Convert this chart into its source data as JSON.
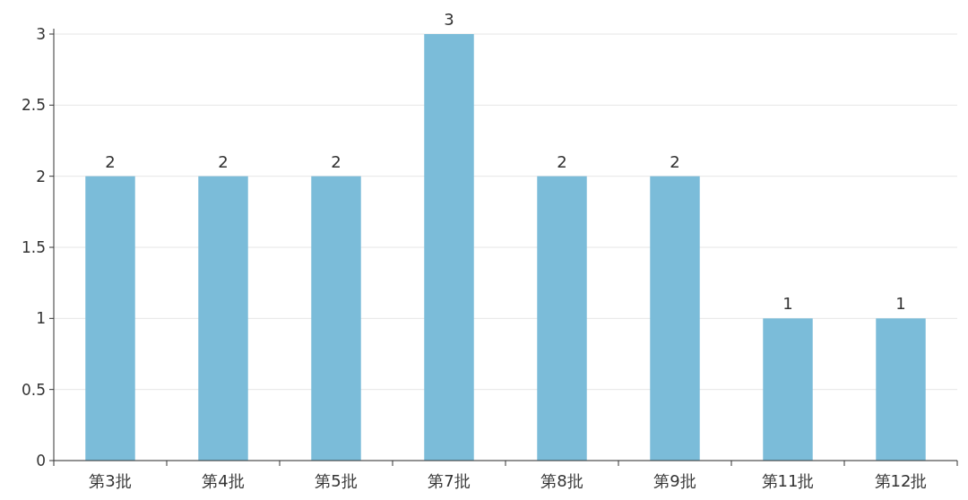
{
  "chart_data": {
    "type": "bar",
    "categories": [
      "第3批",
      "第4批",
      "第5批",
      "第7批",
      "第8批",
      "第9批",
      "第11批",
      "第12批"
    ],
    "values": [
      2,
      2,
      2,
      3,
      2,
      2,
      1,
      1
    ],
    "color": "#7bbcd9",
    "ylim": [
      0,
      3
    ],
    "yticks": [
      0,
      0.5,
      1,
      1.5,
      2,
      2.5,
      3
    ],
    "grid": "y",
    "data_labels": true
  }
}
